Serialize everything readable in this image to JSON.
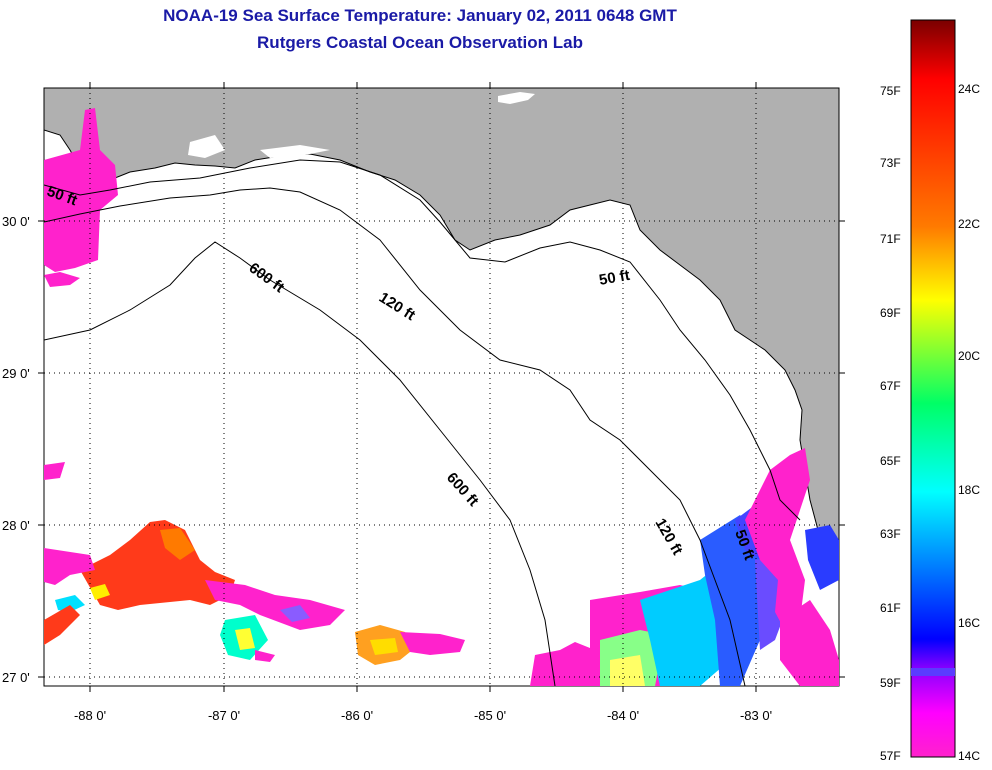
{
  "title": "NOAA-19 Sea Surface Temperature:  January 02, 2011 0648 GMT",
  "subtitle": "Rutgers Coastal Ocean Observation Lab",
  "map": {
    "lon_range": [
      -88.35,
      -82.35
    ],
    "lat_range": [
      26.97,
      30.85
    ],
    "lon_ticks": [
      {
        "value": -88,
        "label": "-88 0'"
      },
      {
        "value": -87,
        "label": "-87 0'"
      },
      {
        "value": -86,
        "label": "-86 0'"
      },
      {
        "value": -85,
        "label": "-85 0'"
      },
      {
        "value": -84,
        "label": "-84 0'"
      },
      {
        "value": -83,
        "label": "-83 0'"
      }
    ],
    "lat_ticks": [
      {
        "value": 30,
        "label": "30 0'"
      },
      {
        "value": 29,
        "label": "29 0'"
      },
      {
        "value": 28,
        "label": "28 0'"
      },
      {
        "value": 27,
        "label": "27 0'"
      }
    ],
    "grid": "dotted",
    "land_color": "#b0b0b0",
    "ocean_color": "#ffffff",
    "contour_labels": [
      "50 ft",
      "600 ft",
      "120 ft",
      "50 ft",
      "600 ft",
      "120 ft",
      "50 ft"
    ]
  },
  "colorbar": {
    "fahrenheit_labels": [
      "75F",
      "73F",
      "71F",
      "69F",
      "67F",
      "65F",
      "63F",
      "61F",
      "59F",
      "57F"
    ],
    "celsius_labels": [
      "24C",
      "22C",
      "20C",
      "18C",
      "16C",
      "14C"
    ],
    "colors": [
      "#7a0000",
      "#ff0000",
      "#ff7a00",
      "#ffff00",
      "#00ff66",
      "#00ffff",
      "#0000ff",
      "#8800ff",
      "#ff00ff"
    ]
  }
}
